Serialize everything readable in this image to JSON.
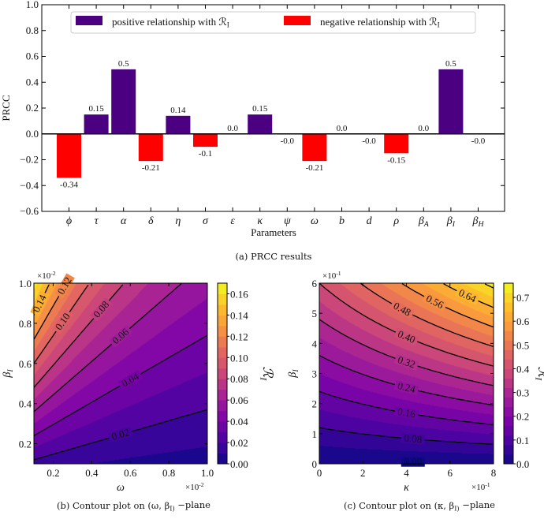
{
  "chart_data": [
    {
      "type": "bar",
      "title": "",
      "caption": "(a) PRCC results",
      "xlabel": "Parameters",
      "ylabel": "PRCC",
      "ylim": [
        -0.6,
        1.0
      ],
      "yticks": [
        "−0.6",
        "−0.4",
        "−0.2",
        "0.0",
        "0.2",
        "0.4",
        "0.6",
        "0.8",
        "1.0"
      ],
      "categories": [
        "ϕ",
        "τ",
        "α",
        "δ",
        "η",
        "σ",
        "ε",
        "κ",
        "ψ",
        "ω",
        "b",
        "d",
        "ρ",
        "β_A",
        "β_I",
        "β_H"
      ],
      "values": [
        -0.34,
        0.15,
        0.5,
        -0.21,
        0.14,
        -0.1,
        0.0,
        0.15,
        -0.0,
        -0.21,
        0.0,
        -0.0,
        -0.15,
        0.0,
        0.5,
        -0.0
      ],
      "value_labels": [
        "-0.34",
        "0.15",
        "0.5",
        "-0.21",
        "0.14",
        "-0.1",
        "0.0",
        "0.15",
        "-0.0",
        "-0.21",
        "0.0",
        "-0.0",
        "-0.15",
        "0.0",
        "0.5",
        "-0.0"
      ],
      "legend": {
        "placement": "top-center",
        "entries": [
          {
            "label": "positive relationship with ℛ_I",
            "color": "#4b0082"
          },
          {
            "label": "negative relationship with ℛ_I",
            "color": "#ff0000"
          }
        ]
      },
      "grid": false
    },
    {
      "type": "heatmap",
      "subtype": "contourf",
      "caption": "(b) Contour plot on (ω, β_I) −plane",
      "xlabel": "ω",
      "ylabel": "β_I",
      "colorbar_label": "ℛ_I",
      "xlim": [
        0.1,
        1.0
      ],
      "ylim": [
        0.1,
        1.0
      ],
      "x_multiplier": "×10^-2",
      "y_multiplier": "×10^-2",
      "xticks": [
        "0.2",
        "0.4",
        "0.6",
        "0.8",
        "1.0"
      ],
      "yticks": [
        "0.2",
        "0.4",
        "0.6",
        "0.8",
        "1.0"
      ],
      "colorbar_ticks": [
        "0.00",
        "0.02",
        "0.04",
        "0.06",
        "0.08",
        "0.10",
        "0.12",
        "0.14",
        "0.16"
      ],
      "colorbar_range": [
        0.0,
        0.17
      ],
      "fill_step": 0.01,
      "contour_levels": [
        0.02,
        0.04,
        0.06,
        0.08,
        0.1,
        0.12,
        0.14
      ],
      "contour_labels": [
        "0.02",
        "0.04",
        "0.06",
        "0.08",
        "0.10",
        "0.12",
        "0.14"
      ],
      "colormap": "plasma"
    },
    {
      "type": "heatmap",
      "subtype": "contourf",
      "caption": "(c) Contour plot on (κ, β_I) −plane",
      "xlabel": "κ",
      "ylabel": "β_I",
      "colorbar_label": "ℛ_I",
      "xlim": [
        0,
        8
      ],
      "ylim": [
        0,
        6
      ],
      "x_multiplier": "×10^-1",
      "y_multiplier": "×10^-1",
      "xticks": [
        "0",
        "2",
        "4",
        "6",
        "8"
      ],
      "yticks": [
        "0",
        "1",
        "2",
        "3",
        "4",
        "5",
        "6"
      ],
      "colorbar_ticks": [
        "0.0",
        "0.1",
        "0.2",
        "0.3",
        "0.4",
        "0.5",
        "0.6",
        "0.7"
      ],
      "colorbar_range": [
        0.0,
        0.76
      ],
      "fill_step": 0.04,
      "contour_levels": [
        0.0,
        0.08,
        0.16,
        0.24,
        0.32,
        0.4,
        0.48,
        0.56,
        0.64,
        0.72
      ],
      "contour_labels": [
        "0.00",
        "0.08",
        "0.16",
        "0.24",
        "0.32",
        "0.40",
        "0.48",
        "0.56",
        "0.64",
        ""
      ],
      "colormap": "plasma"
    }
  ]
}
